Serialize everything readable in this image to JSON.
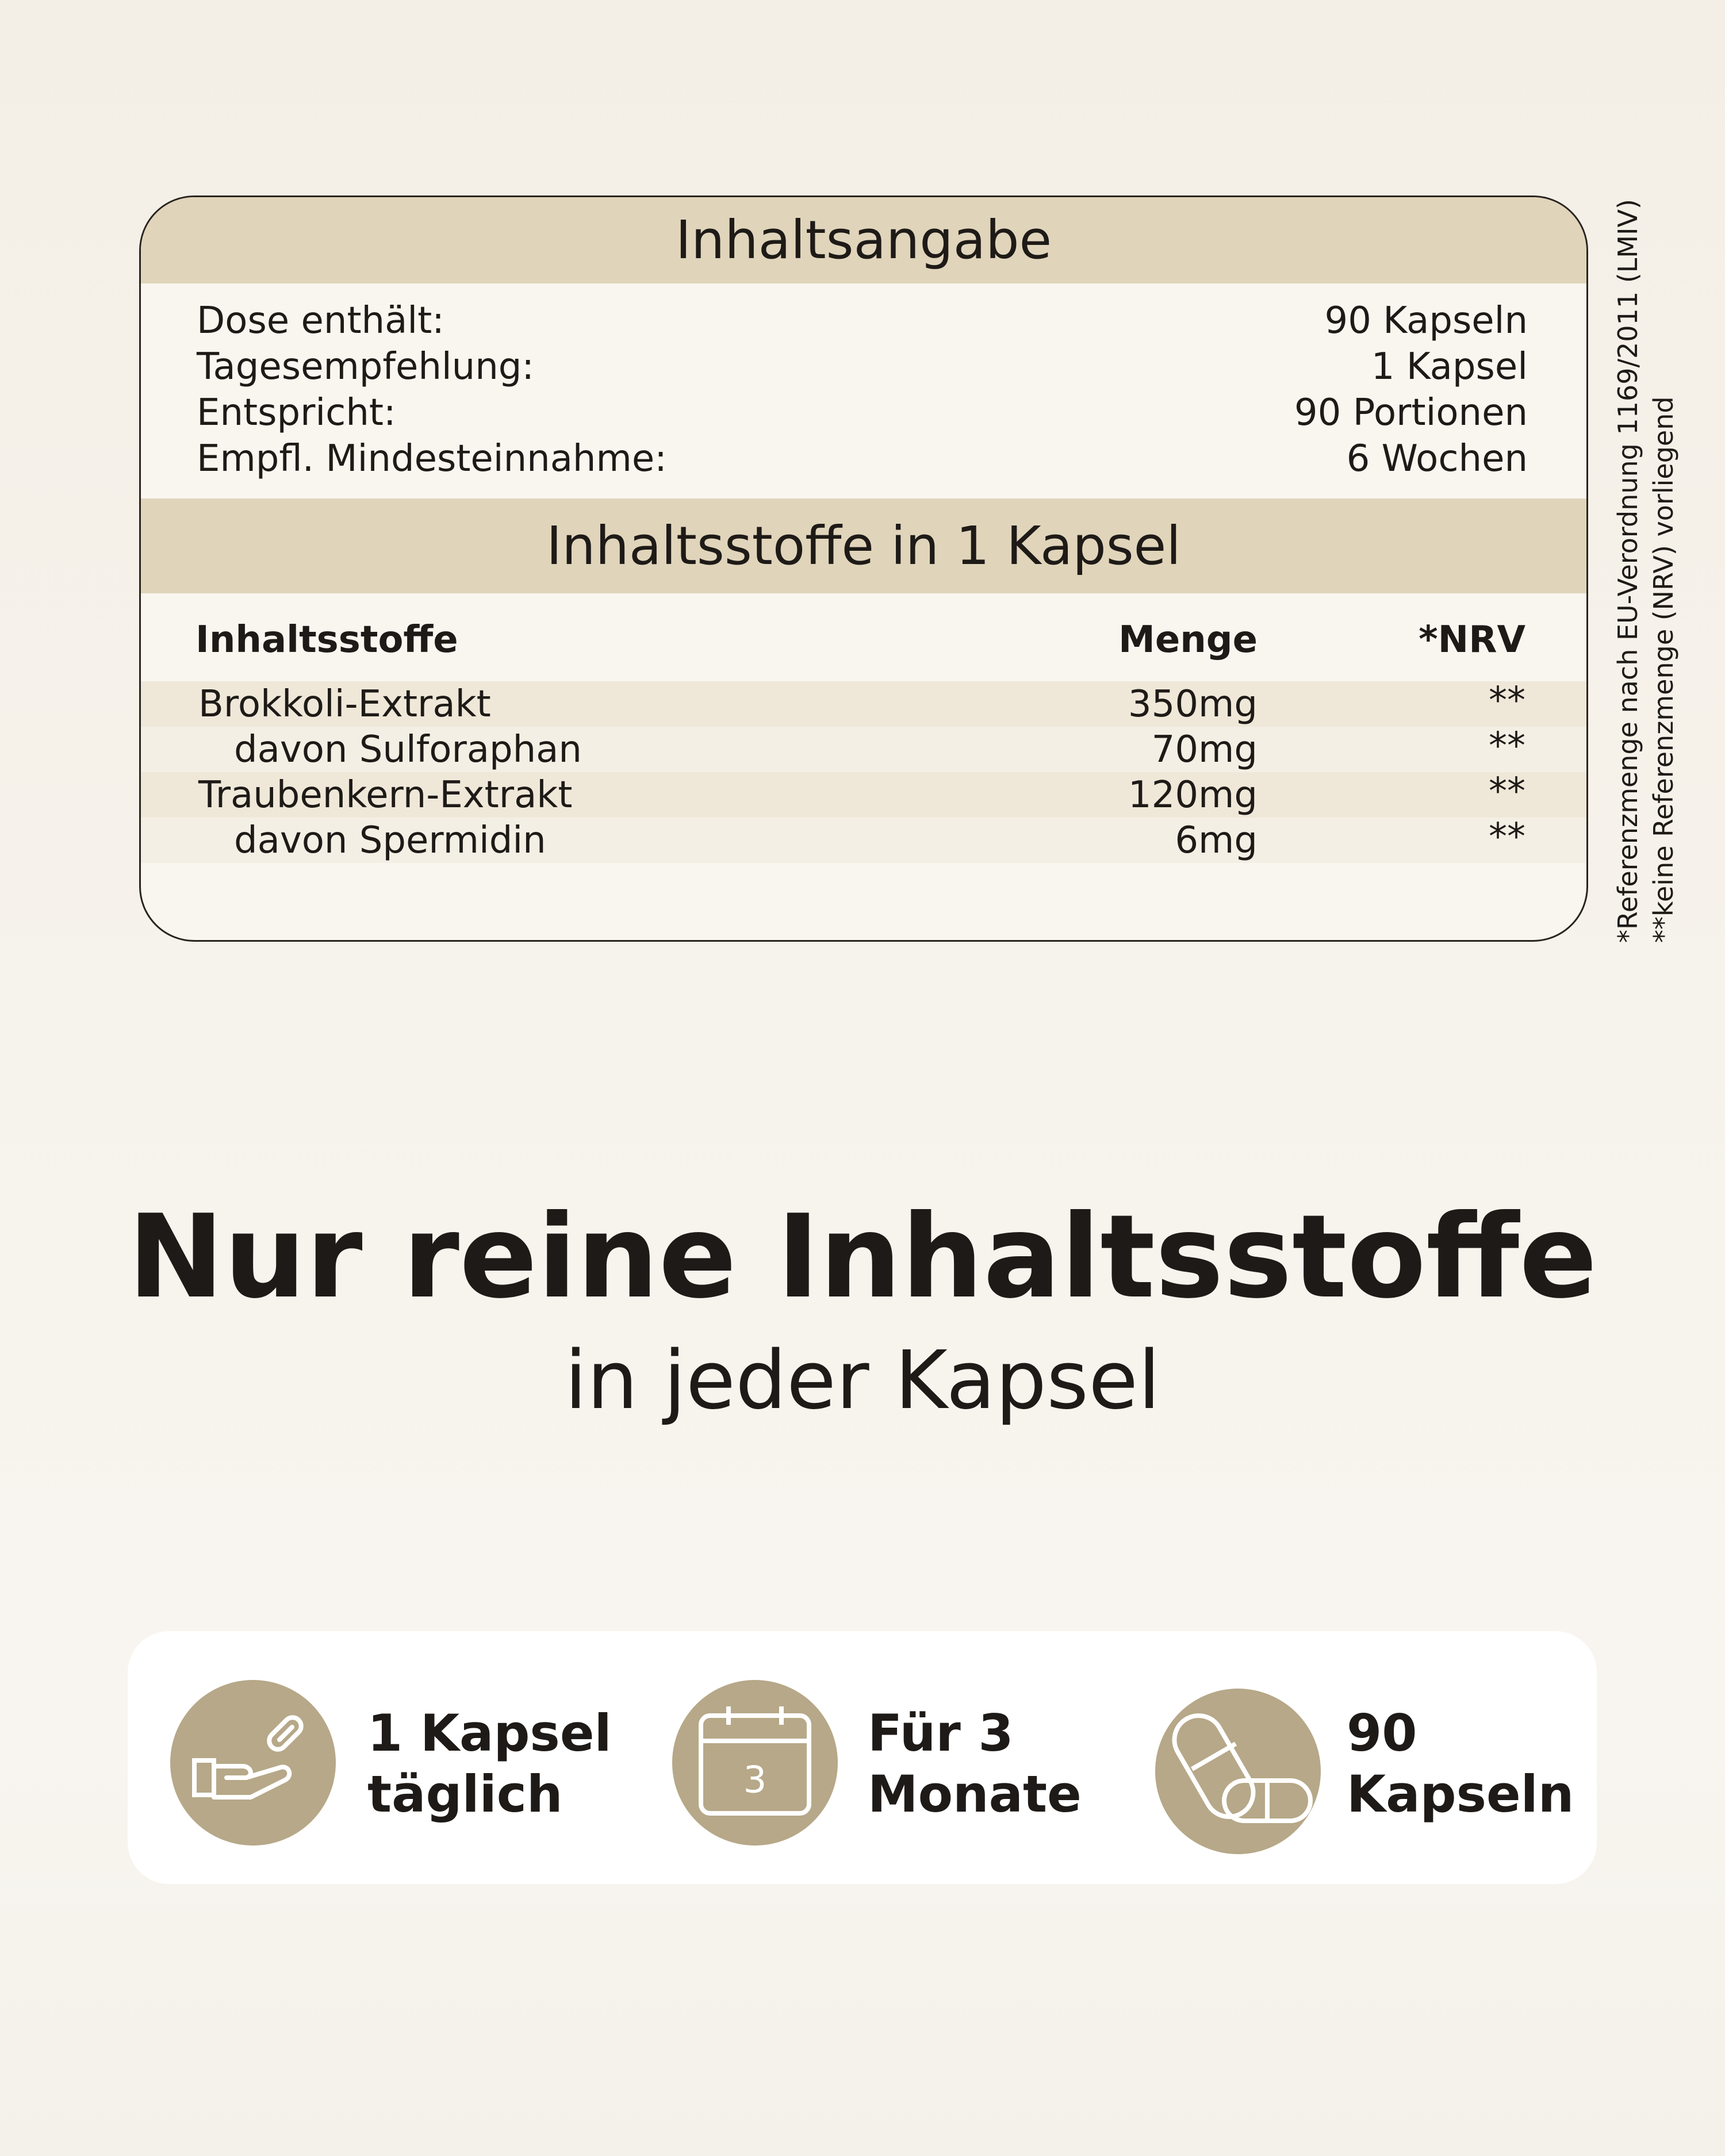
{
  "summary": {
    "title": "Inhaltsangabe",
    "rows": [
      [
        "Dose enthält:",
        "90 Kapseln"
      ],
      [
        "Tagesempfehlung:",
        "1 Kapsel"
      ],
      [
        "Entspricht:",
        "90 Portionen"
      ],
      [
        "Empfl. Mindesteinnahme:",
        "6 Wochen"
      ]
    ]
  },
  "ingredients": {
    "title": "Inhaltsstoffe in 1 Kapsel",
    "header": [
      "Inhaltsstoffe",
      "Menge",
      "*NRV"
    ],
    "rows": [
      [
        "Brokkoli-Extrakt",
        "350mg",
        "**"
      ],
      [
        "davon Sulforaphan",
        "70mg",
        "**"
      ],
      [
        "Traubenkern-Extrakt",
        "120mg",
        "**"
      ],
      [
        "davon Spermidin",
        "6mg",
        "**"
      ]
    ]
  },
  "footnotes": [
    "*Referenzmenge nach EU-Verordnung 1169/2011 (LMIV)",
    "**keine Referenzmenge (NRV) vorliegend"
  ],
  "headline": {
    "title": "Nur reine Inhaltsstoffe",
    "subtitle": "in jeder Kapsel"
  },
  "features": [
    {
      "lines": [
        "1 Kapsel",
        "täglich"
      ]
    },
    {
      "icon_label": "3",
      "lines": [
        "Für 3",
        "Monate"
      ]
    },
    {
      "lines": [
        "90",
        "Kapseln"
      ]
    }
  ]
}
